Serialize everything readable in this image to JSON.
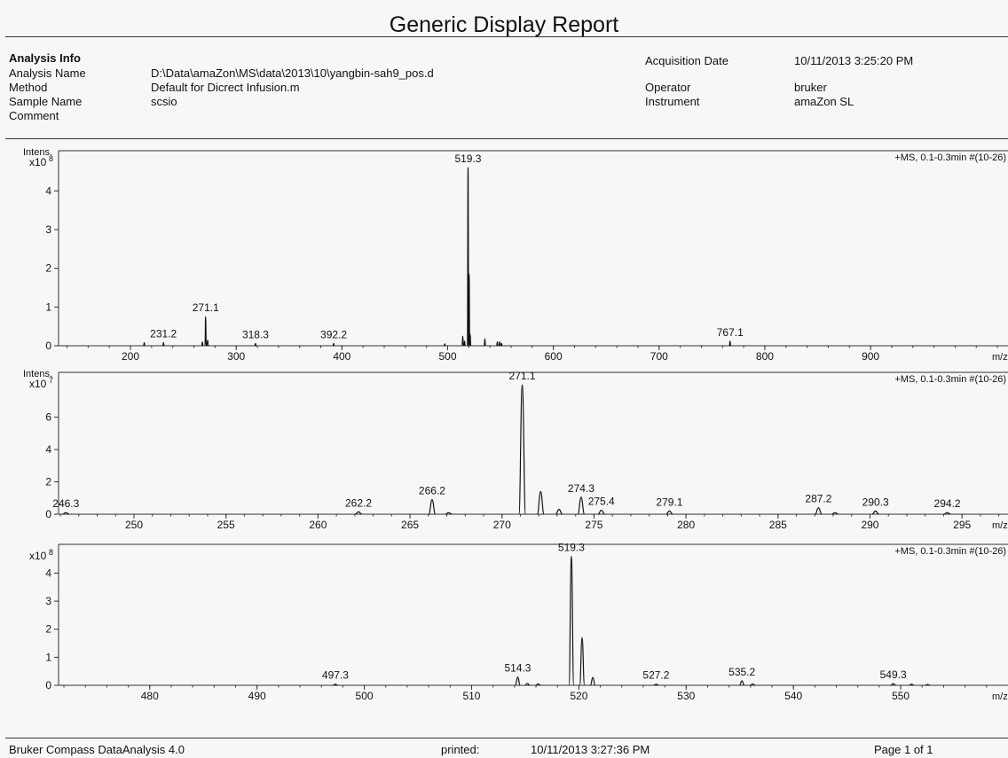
{
  "report": {
    "title": "Generic Display Report",
    "analysis_info_heading": "Analysis Info",
    "labels": {
      "analysis_name": "Analysis Name",
      "method": "Method",
      "sample_name": "Sample Name",
      "comment": "Comment",
      "acquisition_date": "Acquisition Date",
      "operator": "Operator",
      "instrument": "Instrument"
    },
    "values": {
      "analysis_name": "D:\\Data\\amaZon\\MS\\data\\2013\\10\\yangbin-sah9_pos.d",
      "method": "Default for Dicrect Infusion.m",
      "sample_name": "scsio",
      "acquisition_date": "10/11/2013 3:25:20 PM",
      "operator": "bruker",
      "instrument": "amaZon SL"
    }
  },
  "footer": {
    "software": "Bruker Compass DataAnalysis 4.0",
    "printed_label": "printed:",
    "printed_date": "10/11/2013 3:27:36 PM",
    "page": "Page 1 of 1"
  },
  "chart_data": [
    {
      "type": "line",
      "ylabel": "Intens.",
      "y_exponent": "x10",
      "y_exponent_power": "8",
      "scan_info": "+MS, 0.1-0.3min #(10-26)",
      "xlabel": "m/z",
      "xlim": [
        132,
        1030
      ],
      "ylim": [
        0,
        4.9
      ],
      "x_ticks": [
        "200",
        "300",
        "400",
        "500",
        "600",
        "700",
        "800",
        "900"
      ],
      "y_ticks": [
        "0",
        "1",
        "2",
        "3",
        "4"
      ],
      "peak_width": 0.6,
      "peaks": [
        [
          213,
          0.08
        ],
        [
          231.2,
          0.08
        ],
        [
          268,
          0.1
        ],
        [
          271.1,
          0.75
        ],
        [
          273,
          0.15
        ],
        [
          318.3,
          0.06
        ],
        [
          392.2,
          0.06
        ],
        [
          497.3,
          0.05
        ],
        [
          514.3,
          0.25
        ],
        [
          516,
          0.12
        ],
        [
          519.3,
          4.6
        ],
        [
          520.3,
          1.85
        ],
        [
          521.3,
          0.3
        ],
        [
          535.2,
          0.18
        ],
        [
          547,
          0.1
        ],
        [
          549.3,
          0.1
        ],
        [
          551,
          0.06
        ],
        [
          767.1,
          0.12
        ]
      ],
      "labels": [
        {
          "x": 231.2,
          "text": "231.2",
          "y": 0.08
        },
        {
          "x": 271.1,
          "text": "271.1",
          "y": 0.75
        },
        {
          "x": 318.3,
          "text": "318.3",
          "y": 0.06
        },
        {
          "x": 392.2,
          "text": "392.2",
          "y": 0.06
        },
        {
          "x": 519.3,
          "text": "519.3",
          "y": 4.6
        },
        {
          "x": 767.1,
          "text": "767.1",
          "y": 0.12
        }
      ]
    },
    {
      "type": "line",
      "ylabel": "Intens.",
      "y_exponent": "x10",
      "y_exponent_power": "7",
      "scan_info": "+MS, 0.1-0.3min #(10-26)",
      "xlabel": "m/z",
      "xlim": [
        245.9,
        297.5
      ],
      "ylim": [
        0,
        8.5
      ],
      "x_ticks": [
        "250",
        "255",
        "260",
        "265",
        "270",
        "275",
        "280",
        "285",
        "290",
        "295"
      ],
      "y_ticks": [
        "0",
        "2",
        "4",
        "6"
      ],
      "peak_width": 0.18,
      "peaks": [
        [
          246.3,
          0.1
        ],
        [
          262.2,
          0.15
        ],
        [
          266.2,
          0.9
        ],
        [
          267.1,
          0.1
        ],
        [
          271.1,
          8.0
        ],
        [
          272.1,
          1.4
        ],
        [
          273.1,
          0.3
        ],
        [
          274.3,
          1.05
        ],
        [
          275.4,
          0.25
        ],
        [
          279.1,
          0.2
        ],
        [
          287.2,
          0.4
        ],
        [
          288.1,
          0.1
        ],
        [
          290.3,
          0.2
        ],
        [
          294.2,
          0.1
        ]
      ],
      "labels": [
        {
          "x": 246.3,
          "text": "246.3",
          "y": 0.1
        },
        {
          "x": 262.2,
          "text": "262.2",
          "y": 0.15
        },
        {
          "x": 266.2,
          "text": "266.2",
          "y": 0.9
        },
        {
          "x": 271.1,
          "text": "271.1",
          "y": 8.0
        },
        {
          "x": 274.3,
          "text": "274.3",
          "y": 1.05
        },
        {
          "x": 275.4,
          "text": "275.4",
          "y": 0.25
        },
        {
          "x": 279.1,
          "text": "279.1",
          "y": 0.2
        },
        {
          "x": 287.2,
          "text": "287.2",
          "y": 0.4
        },
        {
          "x": 290.3,
          "text": "290.3",
          "y": 0.2
        },
        {
          "x": 294.2,
          "text": "294.2",
          "y": 0.1
        }
      ]
    },
    {
      "type": "line",
      "ylabel": "",
      "y_exponent": "x10",
      "y_exponent_power": "8",
      "scan_info": "+MS, 0.1-0.3min #(10-26)",
      "xlabel": "m/z",
      "xlim": [
        471.5,
        560
      ],
      "ylim": [
        0,
        4.9
      ],
      "x_ticks": [
        "480",
        "490",
        "500",
        "510",
        "520",
        "530",
        "540",
        "550"
      ],
      "y_ticks": [
        "0",
        "1",
        "2",
        "3",
        "4"
      ],
      "peak_width": 0.22,
      "peaks": [
        [
          497.3,
          0.04
        ],
        [
          514.3,
          0.3
        ],
        [
          515.2,
          0.07
        ],
        [
          516.2,
          0.05
        ],
        [
          519.3,
          4.6
        ],
        [
          520.3,
          1.7
        ],
        [
          521.3,
          0.28
        ],
        [
          527.2,
          0.04
        ],
        [
          535.2,
          0.16
        ],
        [
          536.2,
          0.05
        ],
        [
          549.3,
          0.06
        ],
        [
          551,
          0.04
        ],
        [
          552.5,
          0.03
        ]
      ],
      "labels": [
        {
          "x": 497.3,
          "text": "497.3",
          "y": 0.04
        },
        {
          "x": 514.3,
          "text": "514.3",
          "y": 0.3
        },
        {
          "x": 519.3,
          "text": "519.3",
          "y": 4.6
        },
        {
          "x": 527.2,
          "text": "527.2",
          "y": 0.04
        },
        {
          "x": 535.2,
          "text": "535.2",
          "y": 0.16
        },
        {
          "x": 549.3,
          "text": "549.3",
          "y": 0.06
        }
      ]
    }
  ]
}
